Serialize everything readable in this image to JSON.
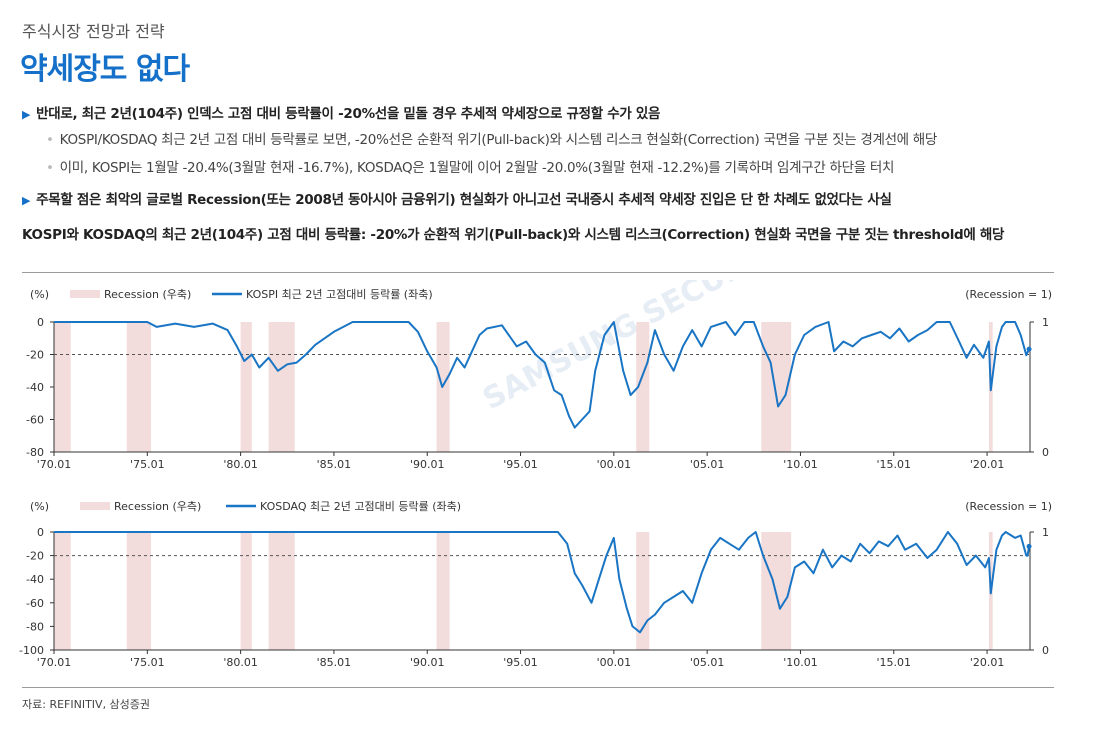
{
  "header": {
    "section": "주식시장 전망과 전략",
    "title": "약세장도 없다"
  },
  "bullets": [
    {
      "level": 1,
      "text": "반대로, 최근 2년(104주) 인덱스 고점 대비 등락률이 -20%선을 밑돌 경우 추세적 약세장으로 규정할 수가 있음"
    },
    {
      "level": 2,
      "text": "KOSPI/KOSDAQ 최근 2년 고점 대비 등락률로 보면, -20%선은 순환적 위기(Pull-back)와 시스템 리스크 현실화(Correction) 국면을 구분 짓는 경계선에 해당"
    },
    {
      "level": 2,
      "text": "이미, KOSPI는 1월말 -20.4%(3월말 현재 -16.7%), KOSDAQ은 1월말에 이어 2월말 -20.0%(3월말 현재 -12.2%)를 기록하며 임계구간 하단을 터치"
    },
    {
      "level": 1,
      "text": "주목할 점은 최악의 글로벌 Recession(또는 2008년 동아시아 금융위기) 현실화가 아니고선 국내증시 추세적 약세장 진입은 단 한 차례도 없었다는 사실"
    }
  ],
  "chart_title": "KOSPI와 KOSDAQ의 최근 2년(104주) 고점 대비 등락률: -20%가 순환적 위기(Pull-back)와 시스템 리스크(Correction) 현실화 국면을 구분 짓는 threshold에 해당",
  "source": "자료: REFINITIV, 삼성증권",
  "watermark": "SAMSUNG SECURITIES",
  "colors": {
    "line": "#1a75c4",
    "recession": "#f3dcdc",
    "title": "#1570c9",
    "threshold": "#555555"
  },
  "chart_data": [
    {
      "type": "line",
      "legend": [
        "Recession (우축)",
        "KOSPI 최근 2년 고점대비 등락률 (좌축)"
      ],
      "ylabel_left": "(%)",
      "ylabel_right": "(Recession = 1)",
      "ylim": [
        -80,
        0
      ],
      "yticks": [
        0,
        -20,
        -40,
        -60,
        -80
      ],
      "y2ticks": [
        1,
        0
      ],
      "xlim": [
        1970.0,
        2022.3
      ],
      "xticks": [
        "'70.01",
        "'75.01",
        "'80.01",
        "'85.01",
        "'90.01",
        "'95.01",
        "'00.01",
        "'05.01",
        "'10.01",
        "'15.01",
        "'20.01"
      ],
      "threshold": -20,
      "recessions": [
        [
          1970.0,
          1970.9
        ],
        [
          1973.9,
          1975.2
        ],
        [
          1980.0,
          1980.6
        ],
        [
          1981.5,
          1982.9
        ],
        [
          1990.5,
          1991.2
        ],
        [
          2001.2,
          2001.9
        ],
        [
          2007.9,
          2009.5
        ],
        [
          2020.1,
          2020.3
        ]
      ],
      "series": [
        {
          "name": "KOSPI 최근 2년 고점대비 등락률 (좌축)",
          "points": [
            [
              1970.0,
              0
            ],
            [
              1975.0,
              0
            ],
            [
              1975.5,
              -3
            ],
            [
              1976.5,
              -1
            ],
            [
              1977.5,
              -3
            ],
            [
              1978.5,
              -1
            ],
            [
              1979.3,
              -5
            ],
            [
              1979.8,
              -15
            ],
            [
              1980.2,
              -24
            ],
            [
              1980.6,
              -20
            ],
            [
              1981.0,
              -28
            ],
            [
              1981.5,
              -22
            ],
            [
              1982.0,
              -30
            ],
            [
              1982.5,
              -26
            ],
            [
              1983.0,
              -25
            ],
            [
              1983.5,
              -20
            ],
            [
              1984.0,
              -14
            ],
            [
              1984.5,
              -10
            ],
            [
              1985.0,
              -6
            ],
            [
              1985.5,
              -3
            ],
            [
              1986.0,
              0
            ],
            [
              1989.0,
              0
            ],
            [
              1989.5,
              -6
            ],
            [
              1990.0,
              -18
            ],
            [
              1990.5,
              -28
            ],
            [
              1990.8,
              -40
            ],
            [
              1991.2,
              -32
            ],
            [
              1991.6,
              -22
            ],
            [
              1992.0,
              -28
            ],
            [
              1992.4,
              -18
            ],
            [
              1992.8,
              -8
            ],
            [
              1993.2,
              -4
            ],
            [
              1994.0,
              -2
            ],
            [
              1994.8,
              -15
            ],
            [
              1995.3,
              -12
            ],
            [
              1995.8,
              -20
            ],
            [
              1996.3,
              -25
            ],
            [
              1996.8,
              -42
            ],
            [
              1997.2,
              -45
            ],
            [
              1997.6,
              -58
            ],
            [
              1997.9,
              -65
            ],
            [
              1998.3,
              -60
            ],
            [
              1998.7,
              -55
            ],
            [
              1999.0,
              -30
            ],
            [
              1999.5,
              -8
            ],
            [
              2000.0,
              0
            ],
            [
              2000.5,
              -30
            ],
            [
              2000.9,
              -45
            ],
            [
              2001.3,
              -40
            ],
            [
              2001.8,
              -25
            ],
            [
              2002.2,
              -5
            ],
            [
              2002.7,
              -20
            ],
            [
              2003.2,
              -30
            ],
            [
              2003.7,
              -15
            ],
            [
              2004.2,
              -5
            ],
            [
              2004.7,
              -15
            ],
            [
              2005.2,
              -3
            ],
            [
              2006.0,
              0
            ],
            [
              2006.5,
              -8
            ],
            [
              2007.0,
              0
            ],
            [
              2007.5,
              0
            ],
            [
              2008.0,
              -15
            ],
            [
              2008.4,
              -25
            ],
            [
              2008.8,
              -52
            ],
            [
              2009.2,
              -45
            ],
            [
              2009.7,
              -20
            ],
            [
              2010.2,
              -8
            ],
            [
              2010.8,
              -3
            ],
            [
              2011.5,
              0
            ],
            [
              2011.8,
              -18
            ],
            [
              2012.3,
              -12
            ],
            [
              2012.8,
              -15
            ],
            [
              2013.3,
              -10
            ],
            [
              2013.8,
              -8
            ],
            [
              2014.3,
              -6
            ],
            [
              2014.8,
              -10
            ],
            [
              2015.3,
              -4
            ],
            [
              2015.8,
              -12
            ],
            [
              2016.3,
              -8
            ],
            [
              2016.8,
              -5
            ],
            [
              2017.3,
              0
            ],
            [
              2018.0,
              0
            ],
            [
              2018.5,
              -12
            ],
            [
              2018.9,
              -22
            ],
            [
              2019.3,
              -14
            ],
            [
              2019.8,
              -22
            ],
            [
              2020.1,
              -12
            ],
            [
              2020.2,
              -42
            ],
            [
              2020.5,
              -15
            ],
            [
              2020.8,
              -3
            ],
            [
              2021.0,
              0
            ],
            [
              2021.5,
              0
            ],
            [
              2021.8,
              -8
            ],
            [
              2022.1,
              -20.4
            ],
            [
              2022.25,
              -16.7
            ]
          ]
        }
      ]
    },
    {
      "type": "line",
      "legend": [
        "Recession (우측)",
        "KOSDAQ 최근 2년 고점대비 등락률 (좌축)"
      ],
      "ylabel_left": "(%)",
      "ylabel_right": "(Recession = 1)",
      "ylim": [
        -100,
        0
      ],
      "yticks": [
        0,
        -20,
        -40,
        -60,
        -80,
        -100
      ],
      "y2ticks": [
        1,
        0
      ],
      "xlim": [
        1970.0,
        2022.3
      ],
      "xticks": [
        "'70.01",
        "'75.01",
        "'80.01",
        "'85.01",
        "'90.01",
        "'95.01",
        "'00.01",
        "'05.01",
        "'10.01",
        "'15.01",
        "'20.01"
      ],
      "threshold": -20,
      "recessions": [
        [
          1970.0,
          1970.9
        ],
        [
          1973.9,
          1975.2
        ],
        [
          1980.0,
          1980.6
        ],
        [
          1981.5,
          1982.9
        ],
        [
          1990.5,
          1991.2
        ],
        [
          2001.2,
          2001.9
        ],
        [
          2007.9,
          2009.5
        ],
        [
          2020.1,
          2020.3
        ]
      ],
      "series": [
        {
          "name": "KOSDAQ 최근 2년 고점대비 등락률 (좌축)",
          "points": [
            [
              1970.0,
              0
            ],
            [
              1997.0,
              0
            ],
            [
              1997.5,
              -10
            ],
            [
              1997.9,
              -35
            ],
            [
              1998.3,
              -45
            ],
            [
              1998.8,
              -60
            ],
            [
              1999.2,
              -40
            ],
            [
              1999.6,
              -20
            ],
            [
              2000.0,
              -5
            ],
            [
              2000.3,
              -40
            ],
            [
              2000.7,
              -65
            ],
            [
              2001.0,
              -80
            ],
            [
              2001.4,
              -85
            ],
            [
              2001.8,
              -75
            ],
            [
              2002.2,
              -70
            ],
            [
              2002.7,
              -60
            ],
            [
              2003.2,
              -55
            ],
            [
              2003.7,
              -50
            ],
            [
              2004.2,
              -60
            ],
            [
              2004.7,
              -35
            ],
            [
              2005.2,
              -15
            ],
            [
              2005.7,
              -5
            ],
            [
              2006.2,
              -10
            ],
            [
              2006.7,
              -15
            ],
            [
              2007.2,
              -5
            ],
            [
              2007.6,
              0
            ],
            [
              2008.0,
              -20
            ],
            [
              2008.5,
              -40
            ],
            [
              2008.9,
              -65
            ],
            [
              2009.3,
              -55
            ],
            [
              2009.7,
              -30
            ],
            [
              2010.2,
              -25
            ],
            [
              2010.7,
              -35
            ],
            [
              2011.2,
              -15
            ],
            [
              2011.7,
              -30
            ],
            [
              2012.2,
              -20
            ],
            [
              2012.7,
              -25
            ],
            [
              2013.2,
              -10
            ],
            [
              2013.7,
              -18
            ],
            [
              2014.2,
              -8
            ],
            [
              2014.7,
              -12
            ],
            [
              2015.2,
              -3
            ],
            [
              2015.6,
              -15
            ],
            [
              2016.2,
              -10
            ],
            [
              2016.8,
              -22
            ],
            [
              2017.3,
              -15
            ],
            [
              2017.9,
              0
            ],
            [
              2018.4,
              -10
            ],
            [
              2018.9,
              -28
            ],
            [
              2019.4,
              -20
            ],
            [
              2019.9,
              -30
            ],
            [
              2020.1,
              -22
            ],
            [
              2020.2,
              -52
            ],
            [
              2020.5,
              -15
            ],
            [
              2020.8,
              -3
            ],
            [
              2021.0,
              0
            ],
            [
              2021.5,
              -5
            ],
            [
              2021.8,
              -3
            ],
            [
              2022.1,
              -20
            ],
            [
              2022.17,
              -20.0
            ],
            [
              2022.25,
              -12.2
            ]
          ]
        }
      ]
    }
  ]
}
